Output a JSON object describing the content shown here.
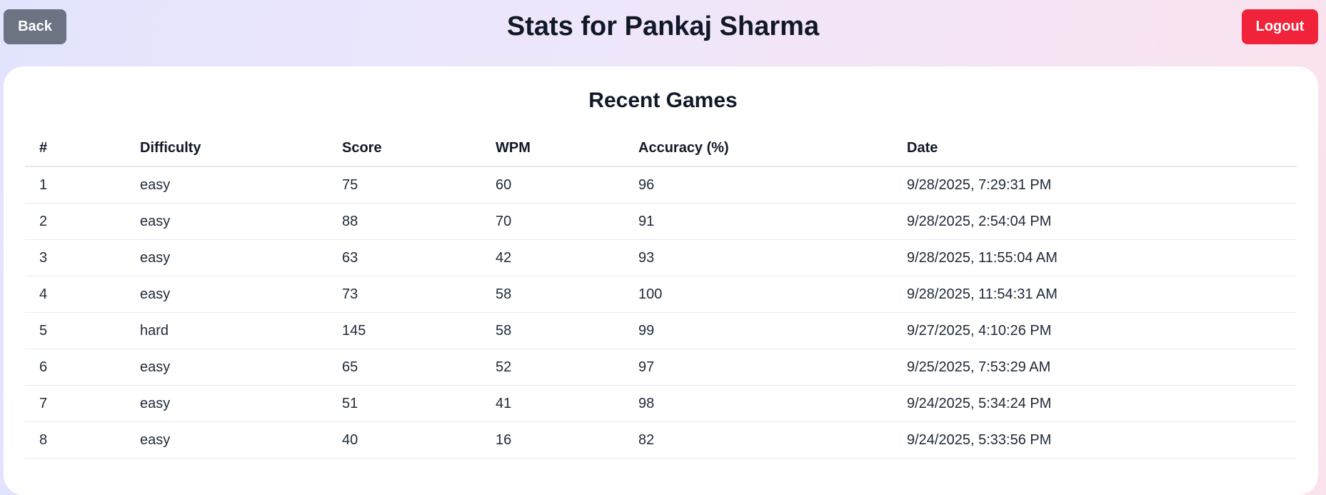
{
  "header": {
    "back_label": "Back",
    "title": "Stats for Pankaj Sharma",
    "logout_label": "Logout"
  },
  "recent_games": {
    "title": "Recent Games",
    "columns": [
      "#",
      "Difficulty",
      "Score",
      "WPM",
      "Accuracy (%)",
      "Date"
    ],
    "rows": [
      [
        "1",
        "easy",
        "75",
        "60",
        "96",
        "9/28/2025, 7:29:31 PM"
      ],
      [
        "2",
        "easy",
        "88",
        "70",
        "91",
        "9/28/2025, 2:54:04 PM"
      ],
      [
        "3",
        "easy",
        "63",
        "42",
        "93",
        "9/28/2025, 11:55:04 AM"
      ],
      [
        "4",
        "easy",
        "73",
        "58",
        "100",
        "9/28/2025, 11:54:31 AM"
      ],
      [
        "5",
        "hard",
        "145",
        "58",
        "99",
        "9/27/2025, 4:10:26 PM"
      ],
      [
        "6",
        "easy",
        "65",
        "52",
        "97",
        "9/25/2025, 7:53:29 AM"
      ],
      [
        "7",
        "easy",
        "51",
        "41",
        "98",
        "9/24/2025, 5:34:24 PM"
      ],
      [
        "8",
        "easy",
        "40",
        "16",
        "82",
        "9/24/2025, 5:33:56 PM"
      ]
    ]
  },
  "colors": {
    "back_button": "#6c7383",
    "logout_button": "#f0233a",
    "card_background": "#ffffff"
  }
}
